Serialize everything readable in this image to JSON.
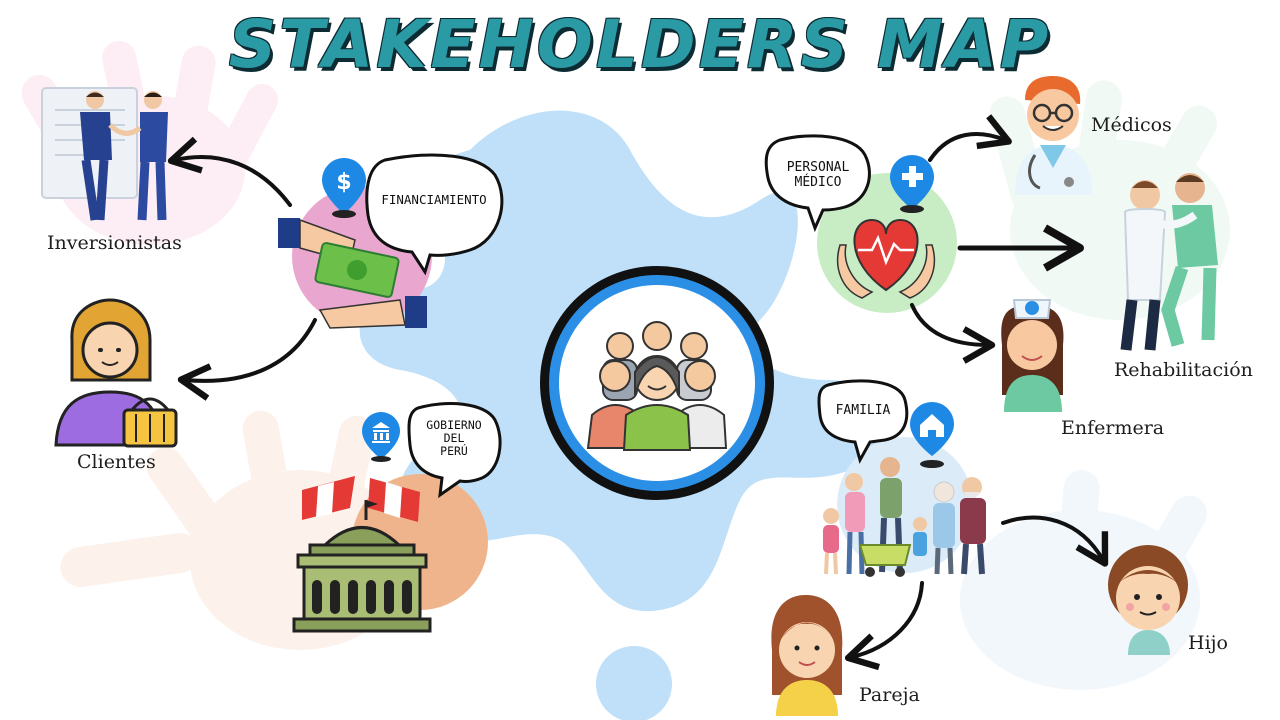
{
  "title": "STAKEHOLDERS MAP",
  "colors": {
    "splash": "#bfe0f8",
    "teal_title": "#2a9aa5",
    "pink_circle": "#e9a7cf",
    "green_circle": "#c8ecc4",
    "orange_circle": "#f0b48c",
    "blue_ring": "#2b8fe6",
    "pin_blue": "#1e88e5"
  },
  "bubbles": {
    "financiamiento": "FINANCIAMIENTO",
    "personal_medico_1": "PERSONAL",
    "personal_medico_2": "MÉDICO",
    "gobierno_1": "GOBIERNO",
    "gobierno_2": "DEL",
    "gobierno_3": "PERÚ",
    "familia": "FAMILIA"
  },
  "labels": {
    "inversionistas": "Inversionistas",
    "clientes": "Clientes",
    "medicos": "Médicos",
    "rehabilitacion": "Rehabilitación",
    "enfermera": "Enfermera",
    "hijo": "Hijo",
    "pareja": "Pareja"
  },
  "icons": {
    "center": "people-group-icon",
    "finance": "money-hands-icon",
    "medical": "heart-care-icon",
    "government": "government-building-icon",
    "family": "family-icon"
  }
}
